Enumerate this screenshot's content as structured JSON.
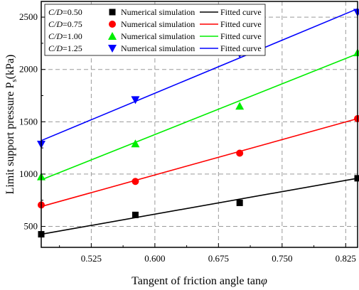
{
  "chart_data": {
    "type": "scatter",
    "xlabel": "Tangent of friction angle tan",
    "xlabel_symbol": "φ",
    "ylabel": "Limit support pressure P",
    "ylabel_sub": "s",
    "ylabel_unit": "(kPa)",
    "xlim": [
      0.466,
      0.839
    ],
    "ylim": [
      300,
      2650
    ],
    "xticks": [
      0.525,
      0.6,
      0.675,
      0.75,
      0.825
    ],
    "xtick_labels": [
      "0.525",
      "0.600",
      "0.675",
      "0.750",
      "0.825"
    ],
    "yticks": [
      500,
      1000,
      1500,
      2000,
      2500
    ],
    "ytick_labels": [
      "500",
      "1000",
      "1500",
      "2000",
      "2500"
    ],
    "grid": true,
    "legend_position": "top-left",
    "x": [
      0.466,
      0.577,
      0.7,
      0.839
    ],
    "series": [
      {
        "condition_var": "C/D",
        "condition_value": "=0.50",
        "marker": "square",
        "color": "#000000",
        "points_name": "Numerical simulation",
        "fit_name": "Fitted curve",
        "values": [
          425,
          610,
          725,
          960
        ],
        "fit": [
          [
            0.466,
            425
          ],
          [
            0.839,
            960
          ]
        ]
      },
      {
        "condition_var": "C/D",
        "condition_value": "=0.75",
        "marker": "circle",
        "color": "#ff0000",
        "points_name": "Numerical simulation",
        "fit_name": "Fitted curve",
        "values": [
          705,
          930,
          1200,
          1530
        ],
        "fit": [
          [
            0.466,
            690
          ],
          [
            0.839,
            1530
          ]
        ]
      },
      {
        "condition_var": "C/D",
        "condition_value": "=1.00",
        "marker": "triangle-up",
        "color": "#00ee00",
        "points_name": "Numerical simulation",
        "fit_name": "Fitted curve",
        "values": [
          975,
          1290,
          1650,
          2160
        ],
        "fit": [
          [
            0.466,
            945
          ],
          [
            0.839,
            2150
          ]
        ]
      },
      {
        "condition_var": "C/D",
        "condition_value": "=1.25",
        "marker": "triangle-down",
        "color": "#0000ff",
        "points_name": "Numerical simulation",
        "fit_name": "",
        "values": [
          1285,
          1710,
          2150,
          2545
        ],
        "fit": [
          [
            0.466,
            1320
          ],
          [
            0.839,
            2580
          ]
        ]
      }
    ],
    "blue_fit_name": "Fitted curve"
  }
}
